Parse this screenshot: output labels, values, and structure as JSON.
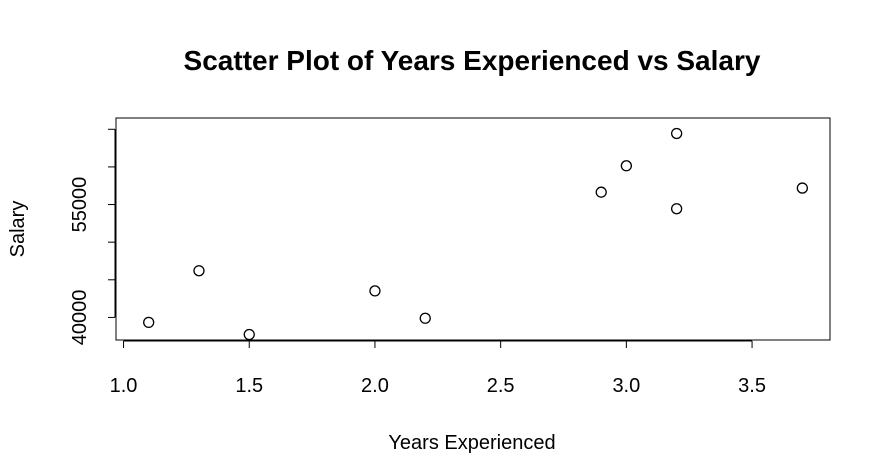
{
  "chart_data": {
    "type": "scatter",
    "title": "Scatter Plot of Years Experienced vs Salary",
    "xlabel": "Years Experienced",
    "ylabel": "Salary",
    "xlim": [
      0.97,
      3.81
    ],
    "ylim": [
      37000,
      66500
    ],
    "x_ticks": [
      1.0,
      1.5,
      2.0,
      2.5,
      3.0,
      3.5
    ],
    "x_tick_labels": [
      "1.0",
      "1.5",
      "2.0",
      "2.5",
      "3.0",
      "3.5"
    ],
    "y_ticks": [
      40000,
      45000,
      50000,
      55000,
      60000,
      65000
    ],
    "y_tick_labels": [
      "40000",
      "",
      "",
      "55000",
      "",
      ""
    ],
    "grid": false,
    "points": [
      {
        "x": 1.1,
        "y": 39343
      },
      {
        "x": 1.3,
        "y": 46205
      },
      {
        "x": 1.5,
        "y": 37731
      },
      {
        "x": 2.0,
        "y": 43525
      },
      {
        "x": 2.2,
        "y": 39891
      },
      {
        "x": 2.9,
        "y": 56642
      },
      {
        "x": 3.0,
        "y": 60150
      },
      {
        "x": 3.2,
        "y": 54445
      },
      {
        "x": 3.2,
        "y": 64445
      },
      {
        "x": 3.7,
        "y": 57189
      }
    ]
  }
}
